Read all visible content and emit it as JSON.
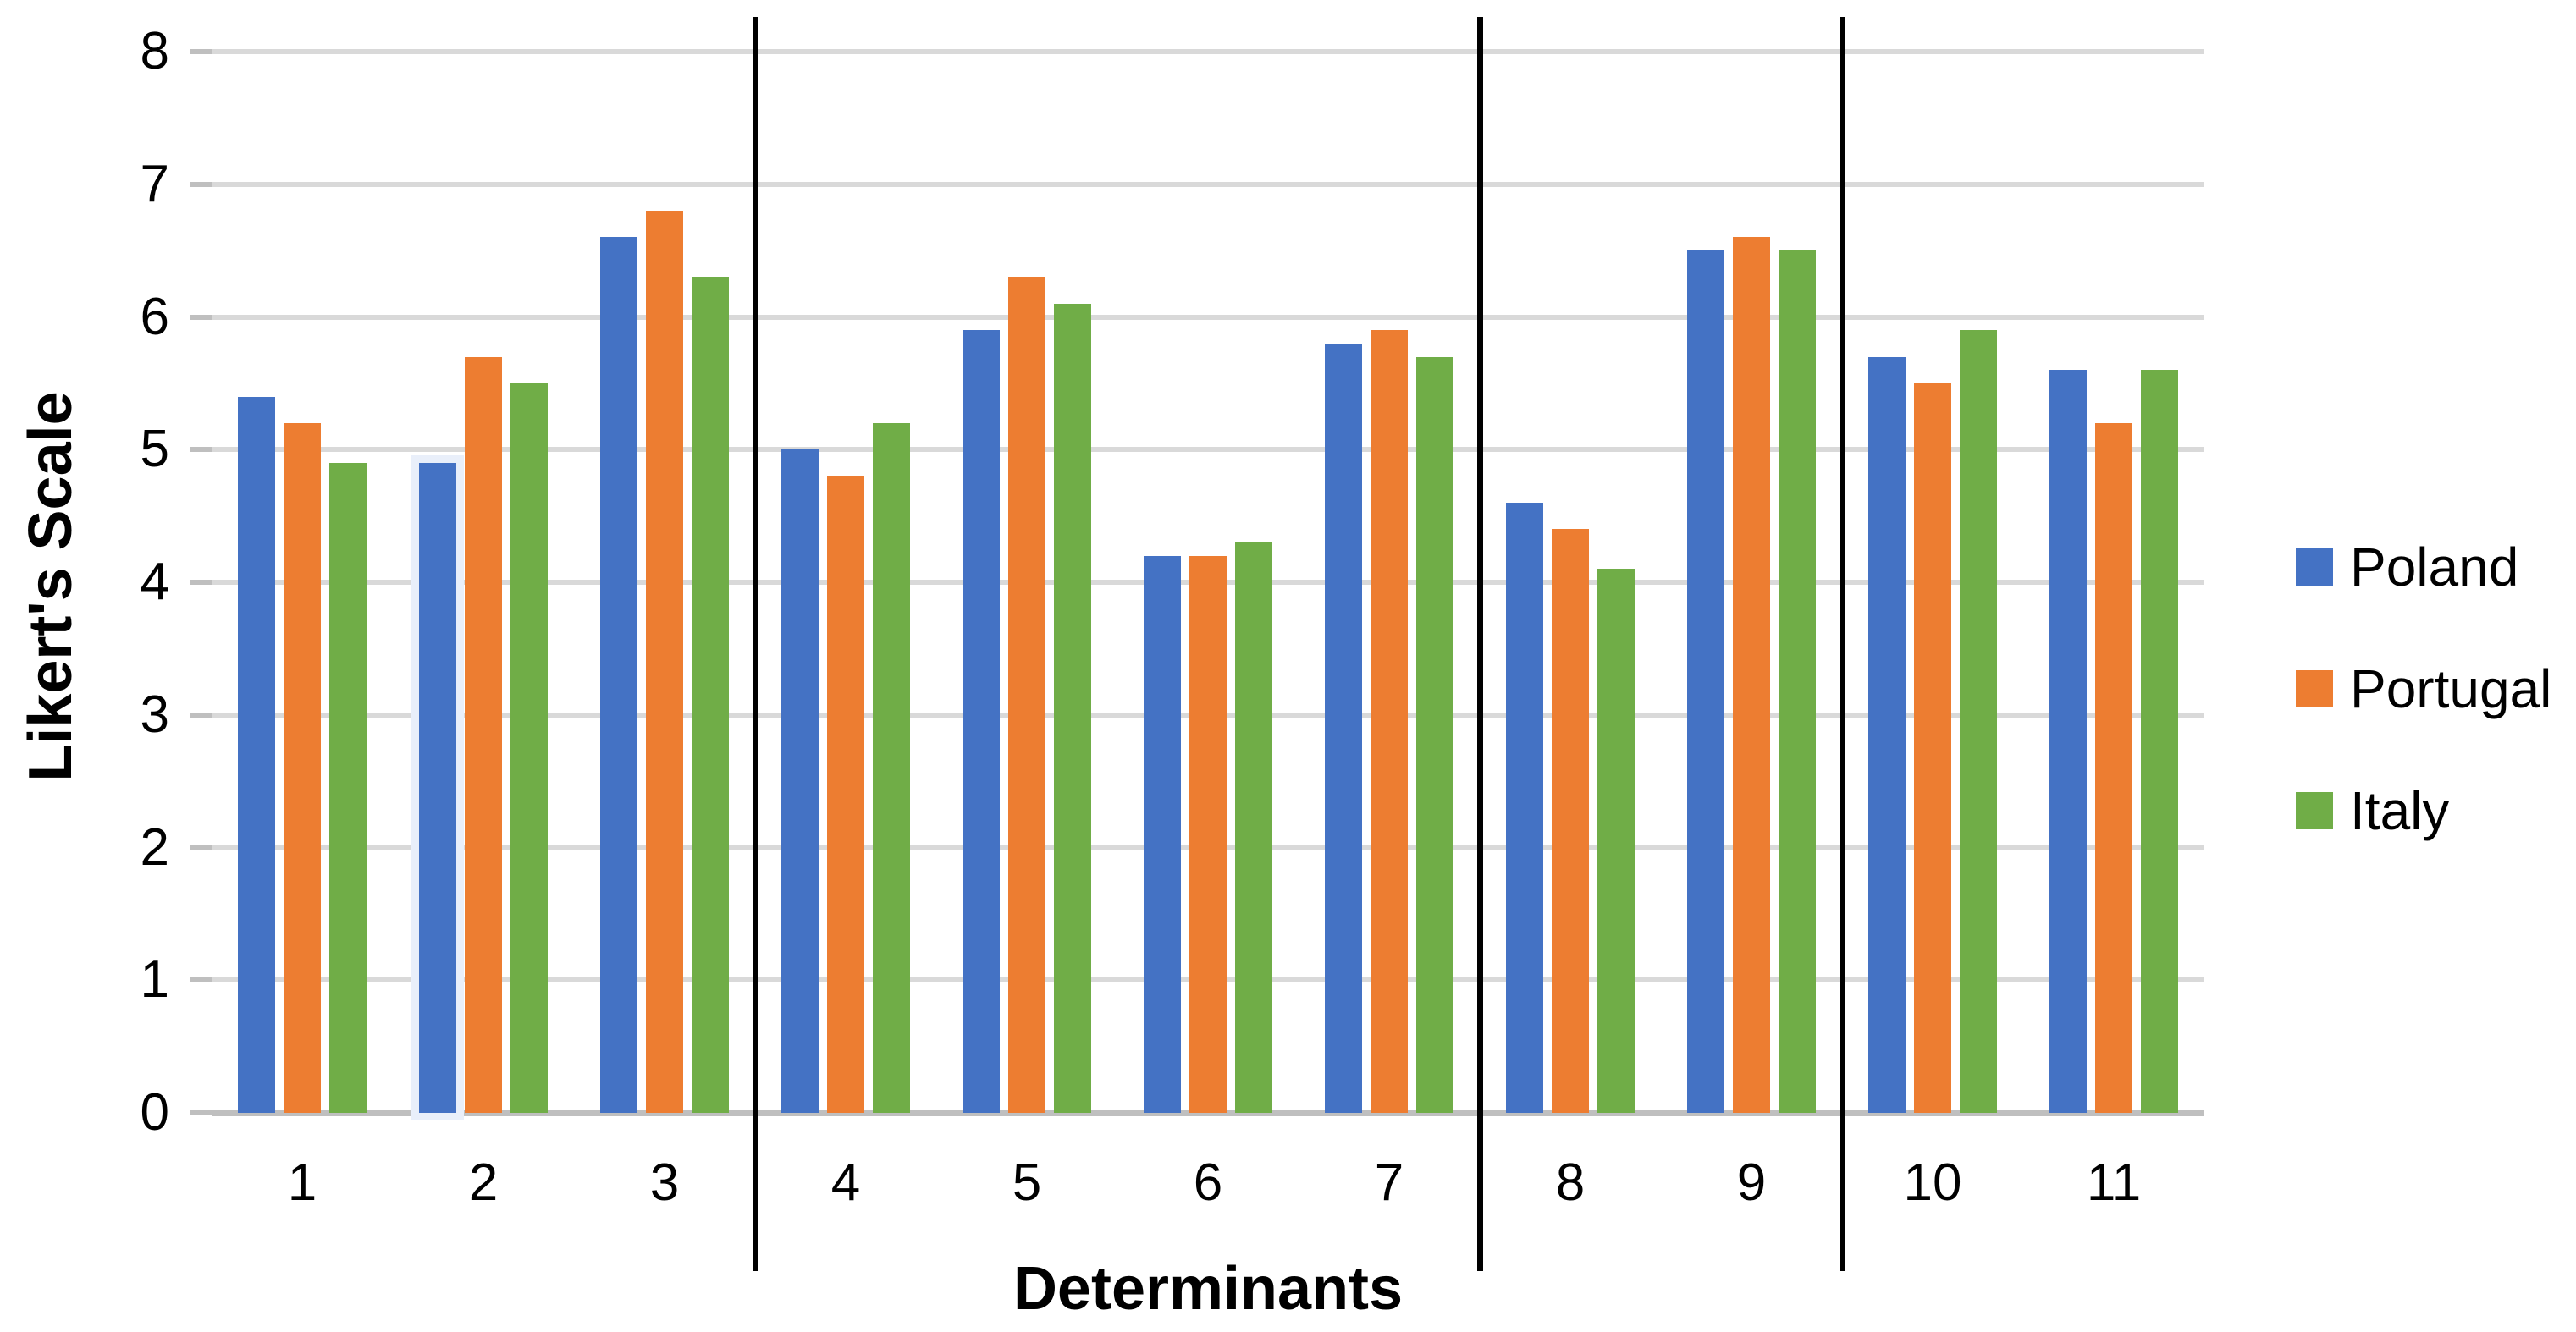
{
  "chart_data": {
    "type": "bar",
    "title": "",
    "xlabel": "Determinants",
    "ylabel": "Likert's Scale",
    "ylim": [
      0,
      8
    ],
    "ytick_step": 1,
    "grid": "horizontal",
    "legend_position": "right",
    "categories": [
      "1",
      "2",
      "3",
      "4",
      "5",
      "6",
      "7",
      "8",
      "9",
      "10",
      "11"
    ],
    "series": [
      {
        "name": "Poland",
        "color": "#4472C4",
        "values": [
          5.4,
          4.9,
          6.6,
          5.0,
          5.9,
          4.2,
          5.8,
          4.6,
          6.5,
          5.7,
          5.6
        ]
      },
      {
        "name": "Portugal",
        "color": "#ED7D31",
        "values": [
          5.2,
          5.7,
          6.8,
          4.8,
          6.3,
          4.2,
          5.9,
          4.4,
          6.6,
          5.5,
          5.2
        ]
      },
      {
        "name": "Italy",
        "color": "#70AD47",
        "values": [
          4.9,
          5.5,
          6.3,
          5.2,
          6.1,
          4.3,
          5.7,
          4.1,
          6.5,
          5.9,
          5.6
        ]
      }
    ],
    "group_dividers_after": [
      "3",
      "7",
      "9"
    ],
    "highlighted_bar": {
      "category": "2",
      "series": "Poland"
    }
  },
  "colors": {
    "gridline": "#D9D9D9",
    "baseline": "#BFBFBF",
    "divider": "#000000",
    "text": "#000000",
    "background": "#FFFFFF"
  }
}
